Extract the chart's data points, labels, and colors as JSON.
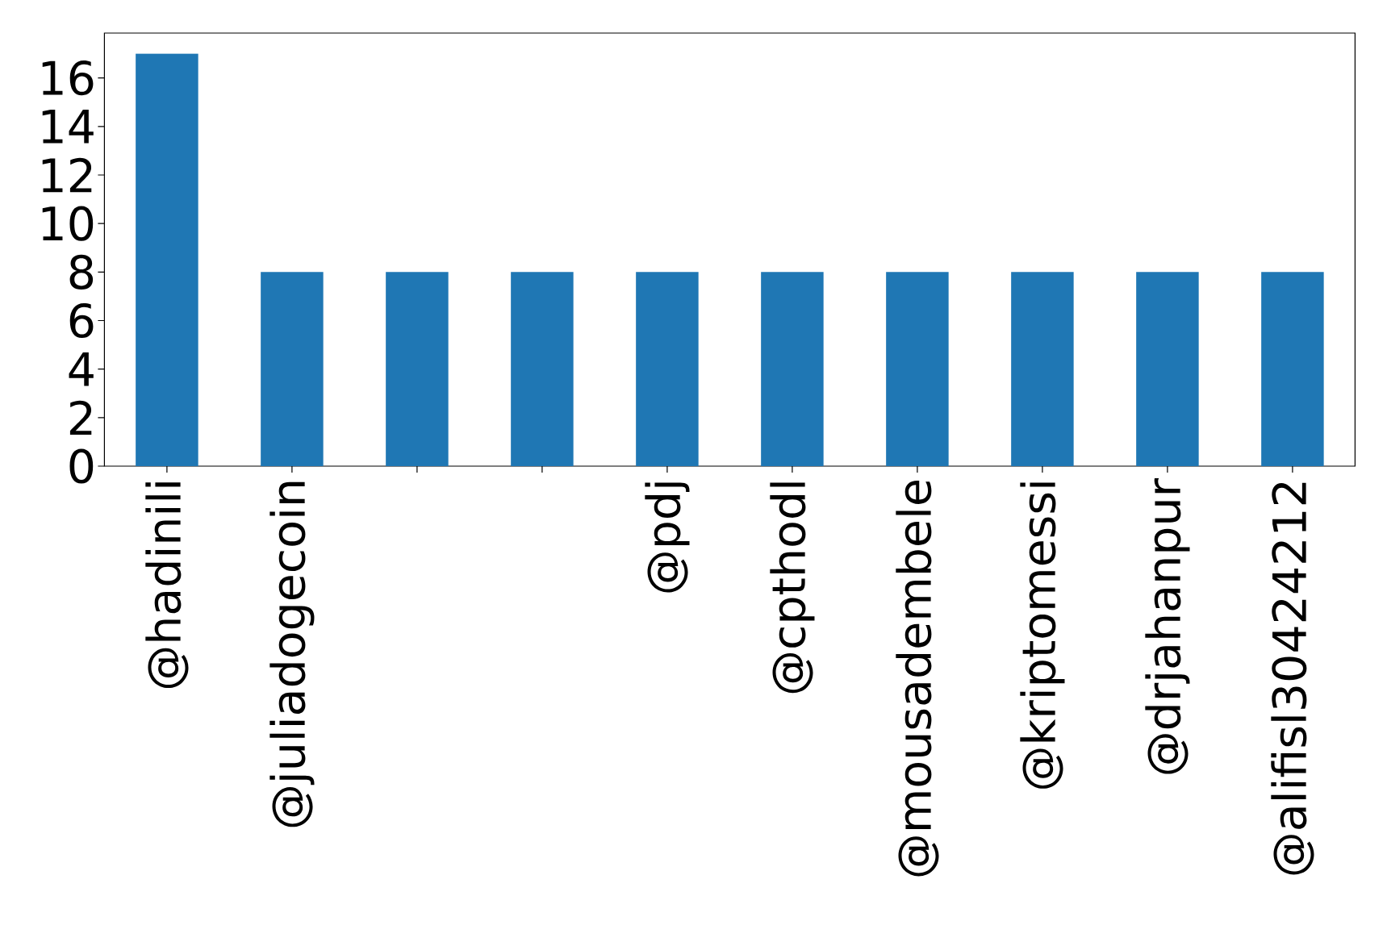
{
  "chart_data": {
    "type": "bar",
    "categories": [
      "@hadinili",
      "@juliadogecoin",
      null,
      null,
      "@pdj",
      "@cpthodl",
      "@mousadembele",
      "@kriptomessi",
      "@drjahanpur",
      "@alifisl30424212"
    ],
    "values": [
      17,
      8,
      8,
      8,
      8,
      8,
      8,
      8,
      8,
      8
    ],
    "color": "#1f77b4",
    "ylim": [
      0,
      17.85
    ],
    "yticks": [
      0,
      2,
      4,
      6,
      8,
      10,
      12,
      14,
      16
    ]
  }
}
